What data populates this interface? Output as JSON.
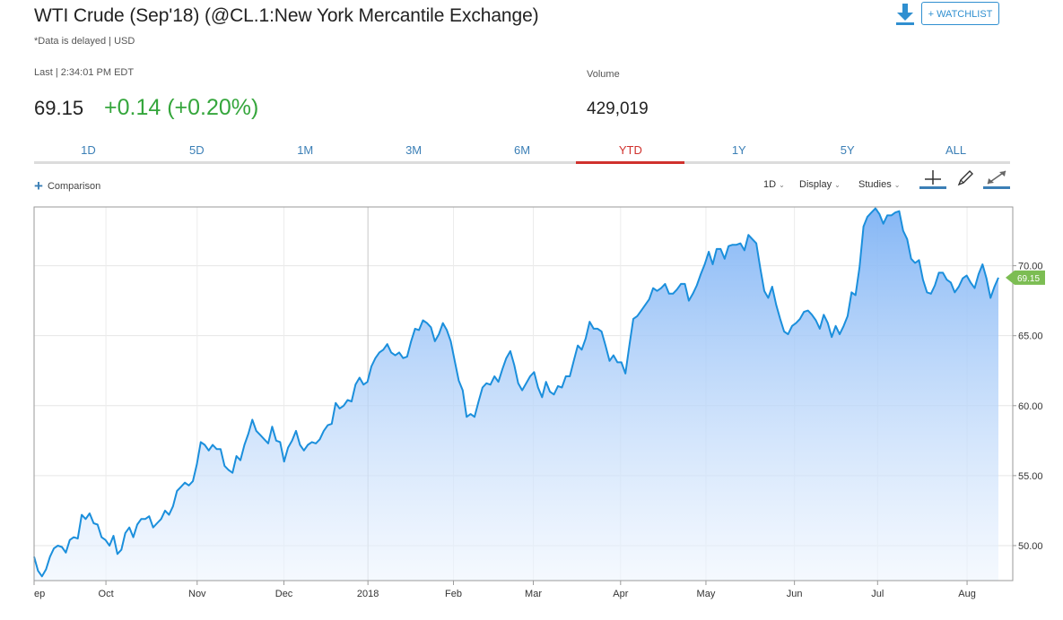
{
  "header": {
    "title": "WTI Crude (Sep'18) (@CL.1:New York Mercantile Exchange)",
    "delayed_note": "*Data is delayed | USD",
    "watchlist_label": "+ WATCHLIST",
    "download_icon": "download-icon"
  },
  "quote": {
    "last_label": "Last | 2:34:01 PM EDT",
    "price": "69.15",
    "change": "+0.14 (+0.20%)",
    "volume_label": "Volume",
    "volume": "429,019"
  },
  "colors": {
    "accent": "#2f8fd0",
    "positive": "#35a63c",
    "active_tab": "#d0312d",
    "line": "#1b8fdc",
    "area_top": "#7fb3f5",
    "price_tag": "#7cbd53"
  },
  "range_tabs": [
    {
      "label": "1D"
    },
    {
      "label": "5D"
    },
    {
      "label": "1M"
    },
    {
      "label": "3M"
    },
    {
      "label": "6M"
    },
    {
      "label": "YTD",
      "active": true
    },
    {
      "label": "1Y"
    },
    {
      "label": "5Y"
    },
    {
      "label": "ALL"
    }
  ],
  "toolbar": {
    "comparison_label": "Comparison",
    "interval_label": "1D",
    "display_label": "Display",
    "studies_label": "Studies",
    "tools": [
      "crosshair-icon",
      "pencil-icon",
      "expand-icon"
    ]
  },
  "chart_data": {
    "type": "area",
    "title": "",
    "xlabel": "",
    "ylabel": "",
    "ylim": [
      47.5,
      74.2
    ],
    "y_ticks": [
      "50.00",
      "55.00",
      "60.00",
      "65.00",
      "70.00"
    ],
    "x_ticks": [
      "ep",
      "Oct",
      "Nov",
      "Dec",
      "2018",
      "Feb",
      "Mar",
      "Apr",
      "May",
      "Jun",
      "Jul",
      "Aug"
    ],
    "last_value_label": "69.15",
    "grid": true,
    "series": [
      {
        "values": [
          49.2,
          48.2,
          47.8,
          48.3,
          49.2,
          49.8,
          50.0,
          49.9,
          49.5,
          50.4,
          50.6,
          50.5,
          52.2,
          51.9,
          52.3,
          51.6,
          51.5,
          50.6,
          50.4,
          50.0,
          50.7,
          49.4,
          49.7,
          50.9,
          51.3,
          50.6,
          51.5,
          51.9,
          51.9,
          52.1,
          51.3,
          51.6,
          51.9,
          52.5,
          52.2,
          52.8,
          53.9,
          54.2,
          54.5,
          54.3,
          54.6,
          55.8,
          57.4,
          57.2,
          56.8,
          57.2,
          56.9,
          56.9,
          55.7,
          55.4,
          55.2,
          56.4,
          56.1,
          57.2,
          58.0,
          59.0,
          58.2,
          57.9,
          57.6,
          57.3,
          58.5,
          57.5,
          57.4,
          56.0,
          57.0,
          57.5,
          58.2,
          57.2,
          56.8,
          57.2,
          57.4,
          57.3,
          57.6,
          58.2,
          58.6,
          58.7,
          60.2,
          59.8,
          60.0,
          60.4,
          60.3,
          61.5,
          62.0,
          61.5,
          61.7,
          62.8,
          63.4,
          63.8,
          64.0,
          64.4,
          63.8,
          63.6,
          63.8,
          63.4,
          63.5,
          64.6,
          65.5,
          65.4,
          66.1,
          65.9,
          65.6,
          64.6,
          65.1,
          65.9,
          65.4,
          64.6,
          63.2,
          61.8,
          61.1,
          59.2,
          59.4,
          59.2,
          60.3,
          61.3,
          61.6,
          61.5,
          62.1,
          61.7,
          62.6,
          63.4,
          63.9,
          62.9,
          61.6,
          61.1,
          61.6,
          62.1,
          62.4,
          61.3,
          60.6,
          61.7,
          61.0,
          60.8,
          61.4,
          61.3,
          62.1,
          62.1,
          63.2,
          64.3,
          64.0,
          64.8,
          66.0,
          65.5,
          65.5,
          65.3,
          64.3,
          63.2,
          63.6,
          63.1,
          63.1,
          62.3,
          64.3,
          66.2,
          66.4,
          66.8,
          67.2,
          67.6,
          68.4,
          68.2,
          68.4,
          68.7,
          68.0,
          68.0,
          68.3,
          68.7,
          68.7,
          67.5,
          68.0,
          68.6,
          69.4,
          70.1,
          71.0,
          70.1,
          71.2,
          71.2,
          70.5,
          71.4,
          71.5,
          71.5,
          71.6,
          71.1,
          72.2,
          71.9,
          71.6,
          69.8,
          68.2,
          67.7,
          68.5,
          67.2,
          66.2,
          65.3,
          65.1,
          65.7,
          65.9,
          66.2,
          66.7,
          66.8,
          66.5,
          66.1,
          65.5,
          66.5,
          65.9,
          64.9,
          65.7,
          65.1,
          65.7,
          66.4,
          68.1,
          67.9,
          69.9,
          72.8,
          73.5,
          73.8,
          74.1,
          73.7,
          73.0,
          73.6,
          73.6,
          73.8,
          73.9,
          72.5,
          71.9,
          70.5,
          70.2,
          70.4,
          69.0,
          68.1,
          68.0,
          68.6,
          69.5,
          69.5,
          69.0,
          68.8,
          68.1,
          68.5,
          69.1,
          69.3,
          68.8,
          68.4,
          69.4,
          70.1,
          69.1,
          67.7,
          68.5,
          69.15
        ]
      }
    ]
  }
}
